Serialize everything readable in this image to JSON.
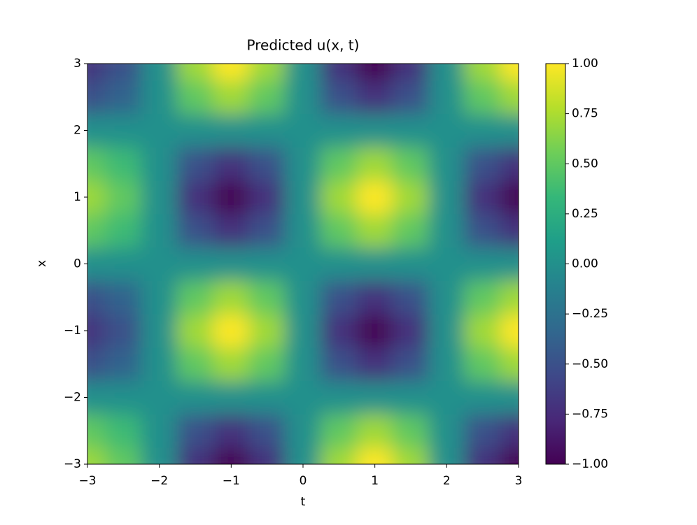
{
  "chart_data": {
    "type": "heatmap",
    "title": "Predicted u(x, t)",
    "x_label": "t",
    "y_label": "x",
    "colormap": "viridis",
    "x": [
      -3,
      -2.5,
      -2,
      -1.5,
      -1,
      -0.5,
      0,
      0.5,
      1,
      1.5,
      2,
      2.5,
      3
    ],
    "y": [
      -3,
      -2.5,
      -2,
      -1.5,
      -1,
      -0.5,
      0,
      0.5,
      1,
      1.5,
      2,
      2.5,
      3
    ],
    "z": [
      [
        0.7,
        0.5,
        0,
        -0.71,
        -1,
        -0.71,
        0,
        0.71,
        1,
        0.71,
        0,
        -0.71,
        -1
      ],
      [
        0.5,
        0.36,
        0,
        -0.5,
        -0.71,
        -0.5,
        0,
        0.5,
        0.71,
        0.5,
        0,
        -0.5,
        -0.71
      ],
      [
        0,
        0,
        0,
        0,
        0,
        0,
        0,
        0,
        0,
        0,
        0,
        0,
        0
      ],
      [
        -0.5,
        -0.36,
        0,
        0.5,
        0.71,
        0.5,
        0,
        -0.5,
        -0.71,
        -0.5,
        0,
        0.5,
        0.71
      ],
      [
        -0.7,
        -0.5,
        0,
        0.71,
        1,
        0.71,
        0,
        -0.71,
        -1,
        -0.71,
        0,
        0.71,
        1
      ],
      [
        -0.5,
        -0.36,
        0,
        0.5,
        0.71,
        0.5,
        0,
        -0.5,
        -0.71,
        -0.5,
        0,
        0.5,
        0.71
      ],
      [
        0,
        0,
        0,
        0,
        0,
        0,
        0,
        0,
        0,
        0,
        0,
        0,
        0
      ],
      [
        0.5,
        0.36,
        0,
        -0.5,
        -0.71,
        -0.5,
        0,
        0.5,
        0.71,
        0.5,
        0,
        -0.5,
        -0.71
      ],
      [
        0.7,
        0.5,
        0,
        -0.71,
        -1,
        -0.71,
        0,
        0.71,
        1,
        0.71,
        0,
        -0.71,
        -1
      ],
      [
        0.5,
        0.36,
        0,
        -0.5,
        -0.71,
        -0.5,
        0,
        0.5,
        0.71,
        0.5,
        0,
        -0.5,
        -0.71
      ],
      [
        0,
        0,
        0,
        0,
        0,
        0,
        0,
        0,
        0,
        0,
        0,
        0,
        0
      ],
      [
        -0.5,
        -0.36,
        0,
        0.5,
        0.71,
        0.5,
        0,
        -0.5,
        -0.71,
        -0.5,
        0,
        0.5,
        0.71
      ],
      [
        -0.7,
        -0.5,
        0,
        0.71,
        1,
        0.71,
        0,
        -0.71,
        -1,
        -0.71,
        0,
        0.71,
        1
      ]
    ],
    "xlim": [
      -3,
      3
    ],
    "ylim": [
      -3,
      3
    ],
    "xticks": [
      {
        "value": -3,
        "label": "−3"
      },
      {
        "value": -2,
        "label": "−2"
      },
      {
        "value": -1,
        "label": "−1"
      },
      0,
      1,
      2,
      3
    ],
    "yticks": [
      {
        "value": -3,
        "label": "−3"
      },
      {
        "value": -2,
        "label": "−2"
      },
      {
        "value": -1,
        "label": "−1"
      },
      0,
      1,
      2,
      3
    ],
    "clim": [
      -1,
      1
    ],
    "cticks": [
      {
        "value": -1,
        "label": "−1.00"
      },
      {
        "value": -0.75,
        "label": "−0.75"
      },
      {
        "value": -0.5,
        "label": "−0.50"
      },
      {
        "value": -0.25,
        "label": "−0.25"
      },
      {
        "value": 0,
        "label": "0.00"
      },
      {
        "value": 0.25,
        "label": "0.25"
      },
      {
        "value": 0.5,
        "label": "0.50"
      },
      {
        "value": 0.75,
        "label": "0.75"
      },
      {
        "value": 1,
        "label": "1.00"
      }
    ]
  }
}
